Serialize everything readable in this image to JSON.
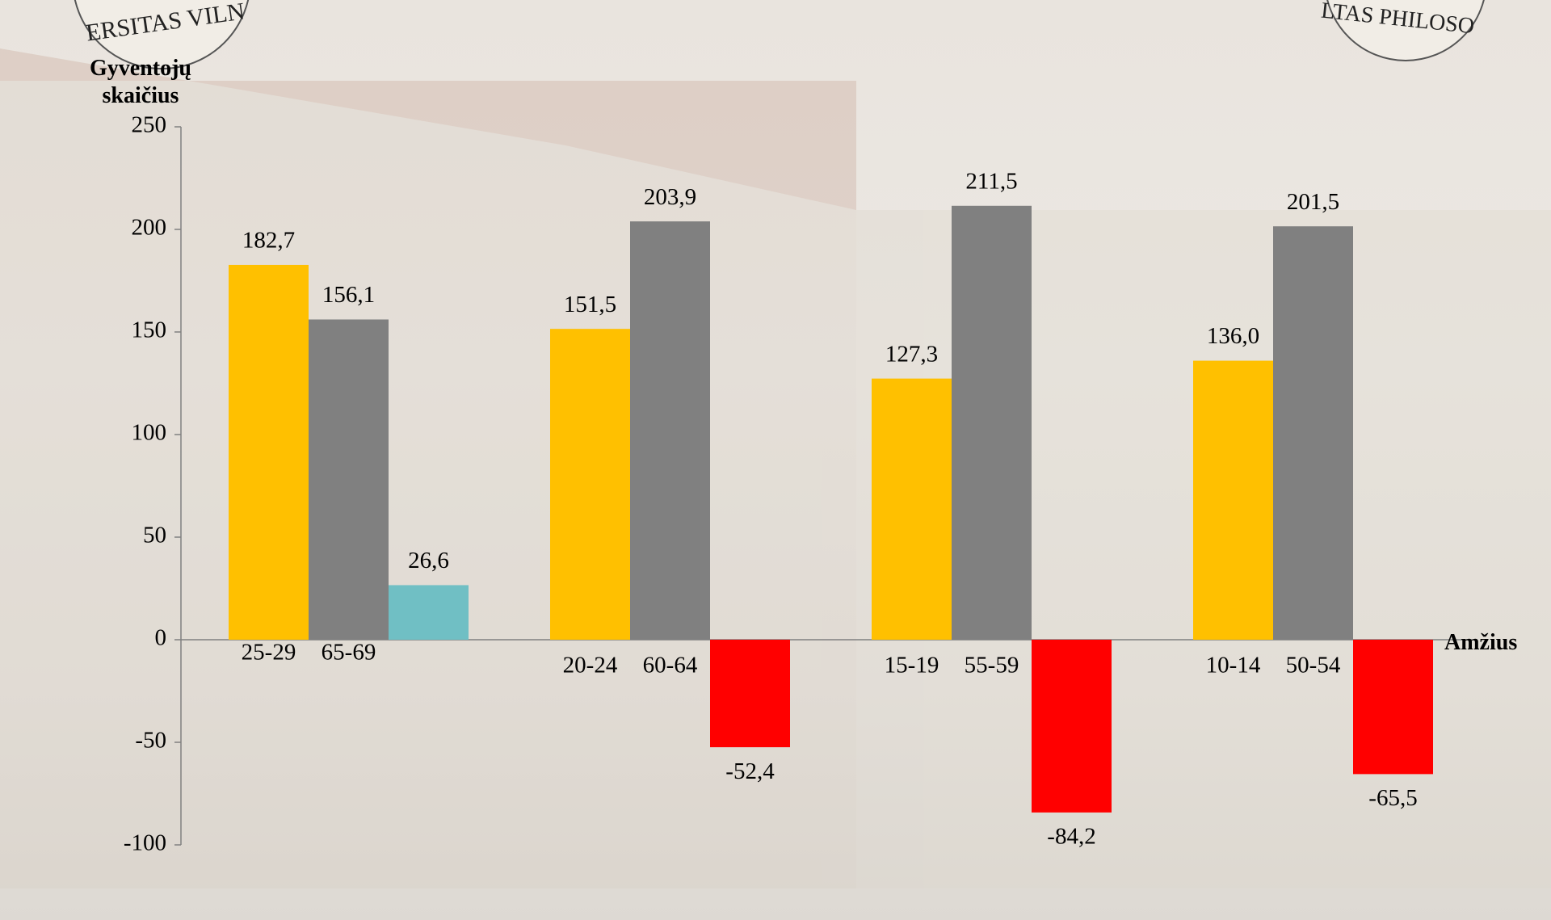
{
  "chart_data": {
    "type": "bar",
    "y_label": "Gyventojų skaičius",
    "x_label": "Amžius",
    "ylim": [
      -100,
      250
    ],
    "yticks": [
      -100,
      -50,
      0,
      50,
      100,
      150,
      200,
      250
    ],
    "series": [
      {
        "color": "#ffc000",
        "values": [
          182.7,
          151.5,
          127.3,
          136.0
        ],
        "value_labels": [
          "182,7",
          "151,5",
          "127,3",
          "136,0"
        ],
        "bar_labels": [
          "25-29",
          "20-24",
          "15-19",
          "10-14"
        ]
      },
      {
        "color": "#808080",
        "values": [
          156.1,
          203.9,
          211.5,
          201.5
        ],
        "value_labels": [
          "156,1",
          "203,9",
          "211,5",
          "201,5"
        ],
        "bar_labels": [
          "65-69",
          "60-64",
          "55-59",
          "50-54"
        ]
      },
      {
        "color": "#ff0000",
        "positive_color": "#70bfc4",
        "values": [
          26.6,
          -52.4,
          -84.2,
          -65.5
        ],
        "value_labels": [
          "26,6",
          "-52,4",
          "-84,2",
          "-65,5"
        ]
      }
    ]
  },
  "logos": {
    "left": "ERSITAS VILN",
    "right": "LTAS PHILOSO"
  }
}
